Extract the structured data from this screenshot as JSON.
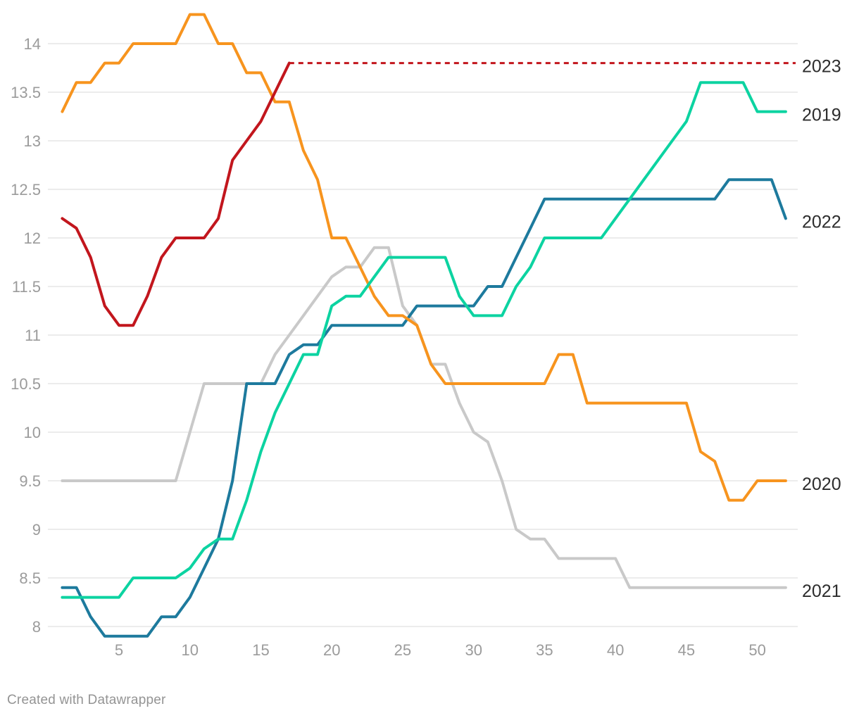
{
  "footer": "Created with Datawrapper",
  "chart_data": {
    "type": "line",
    "x": {
      "unit": "week",
      "range": [
        1,
        52
      ],
      "ticks": [
        5,
        10,
        15,
        20,
        25,
        30,
        35,
        40,
        45,
        50
      ]
    },
    "y": {
      "range": [
        7.8,
        14.35
      ],
      "ticks": [
        14,
        13.5,
        13,
        12.5,
        12,
        11.5,
        11,
        10.5,
        10,
        9.5,
        9,
        8.5,
        8
      ],
      "grid": true
    },
    "legend_position": "right-end-labels",
    "colors": {
      "2019": "#0cd3a1",
      "2020": "#f7941e",
      "2021": "#c9c9c9",
      "2022": "#1d7a9d",
      "2023": "#c2161d",
      "grid": "#e6e6e6",
      "tick_text": "#9b9b9b",
      "label_text": "#2d2d2d"
    },
    "series": [
      {
        "name": "2021",
        "color": "#c9c9c9",
        "values": [
          9.5,
          9.5,
          9.5,
          9.5,
          9.5,
          9.5,
          9.5,
          9.5,
          9.5,
          10.0,
          10.5,
          10.5,
          10.5,
          10.5,
          10.5,
          10.8,
          11.0,
          11.2,
          11.4,
          11.6,
          11.7,
          11.7,
          11.9,
          11.9,
          11.3,
          11.1,
          10.7,
          10.7,
          10.3,
          10.0,
          9.9,
          9.5,
          9.0,
          8.9,
          8.9,
          8.7,
          8.7,
          8.7,
          8.7,
          8.7,
          8.4,
          8.4,
          8.4,
          8.4,
          8.4,
          8.4,
          8.4,
          8.4,
          8.4,
          8.4,
          8.4,
          8.4
        ]
      },
      {
        "name": "2022",
        "color": "#1d7a9d",
        "values": [
          8.4,
          8.4,
          8.1,
          7.9,
          7.9,
          7.9,
          7.9,
          8.1,
          8.1,
          8.3,
          8.6,
          8.9,
          9.5,
          10.5,
          10.5,
          10.5,
          10.8,
          10.9,
          10.9,
          11.1,
          11.1,
          11.1,
          11.1,
          11.1,
          11.1,
          11.3,
          11.3,
          11.3,
          11.3,
          11.3,
          11.5,
          11.5,
          11.8,
          12.1,
          12.4,
          12.4,
          12.4,
          12.4,
          12.4,
          12.4,
          12.4,
          12.4,
          12.4,
          12.4,
          12.4,
          12.4,
          12.4,
          12.6,
          12.6,
          12.6,
          12.6,
          12.2
        ]
      },
      {
        "name": "2020",
        "color": "#f7941e",
        "values": [
          13.3,
          13.6,
          13.6,
          13.8,
          13.8,
          14.0,
          14.0,
          14.0,
          14.0,
          14.3,
          14.3,
          14.0,
          14.0,
          13.7,
          13.7,
          13.4,
          13.4,
          12.9,
          12.6,
          12.0,
          12.0,
          11.7,
          11.4,
          11.2,
          11.2,
          11.1,
          10.7,
          10.5,
          10.5,
          10.5,
          10.5,
          10.5,
          10.5,
          10.5,
          10.5,
          10.8,
          10.8,
          10.3,
          10.3,
          10.3,
          10.3,
          10.3,
          10.3,
          10.3,
          10.3,
          9.8,
          9.7,
          9.3,
          9.3,
          9.5,
          9.5,
          9.5
        ]
      },
      {
        "name": "2019",
        "color": "#0cd3a1",
        "values": [
          8.3,
          8.3,
          8.3,
          8.3,
          8.3,
          8.5,
          8.5,
          8.5,
          8.5,
          8.6,
          8.8,
          8.9,
          8.9,
          9.3,
          9.8,
          10.2,
          10.5,
          10.8,
          10.8,
          11.3,
          11.4,
          11.4,
          11.6,
          11.8,
          11.8,
          11.8,
          11.8,
          11.8,
          11.4,
          11.2,
          11.2,
          11.2,
          11.5,
          11.7,
          12.0,
          12.0,
          12.0,
          12.0,
          12.0,
          12.2,
          12.4,
          12.6,
          12.8,
          13.0,
          13.2,
          13.6,
          13.6,
          13.6,
          13.6,
          13.3,
          13.3,
          13.3
        ]
      },
      {
        "name": "2023",
        "color": "#c2161d",
        "values": [
          12.2,
          12.1,
          11.8,
          11.3,
          11.1,
          11.1,
          11.4,
          11.8,
          12.0,
          12.0,
          12.0,
          12.2,
          12.8,
          13.0,
          13.2,
          13.5,
          13.8
        ],
        "projection": {
          "style": "dotted",
          "value": 13.8,
          "from_week": 17,
          "to_week": 52
        }
      }
    ],
    "end_labels": [
      {
        "text": "2023",
        "value": 13.8
      },
      {
        "text": "2019",
        "value": 13.3
      },
      {
        "text": "2022",
        "value": 12.2
      },
      {
        "text": "2020",
        "value": 9.5
      },
      {
        "text": "2021",
        "value": 8.4
      }
    ]
  }
}
